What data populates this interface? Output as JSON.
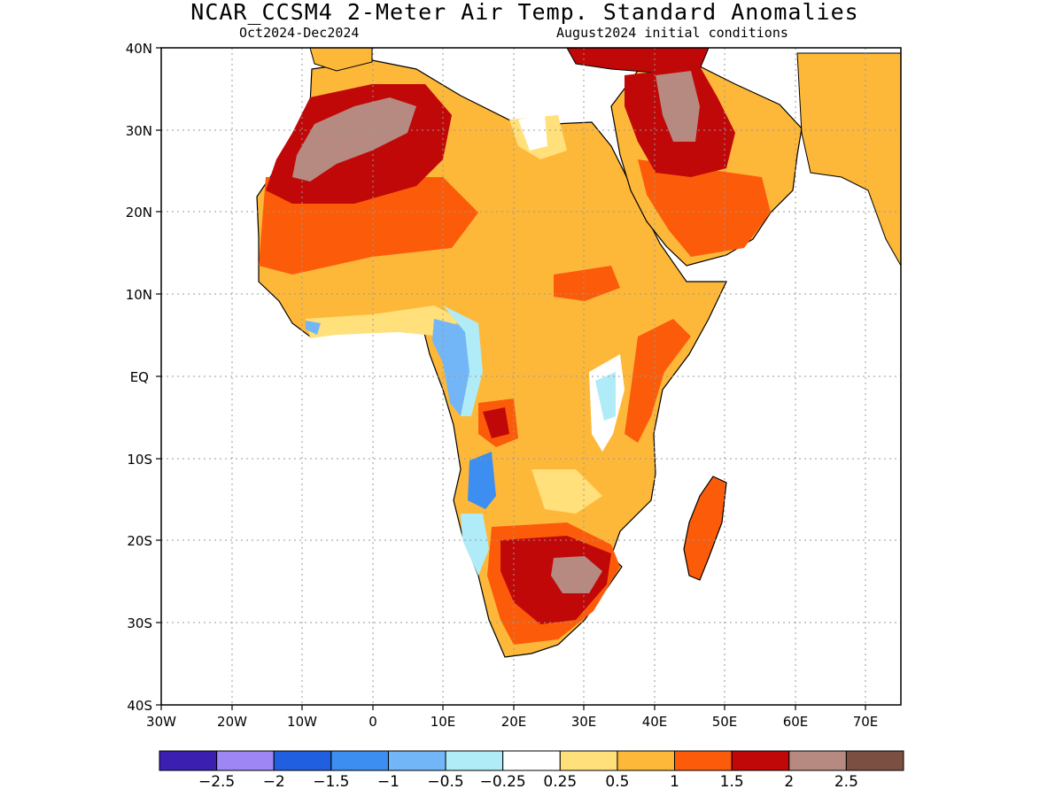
{
  "title": "NCAR_CCSM4 2-Meter Air Temp. Standard Anomalies",
  "subtitle_left": "Oct2024-Dec2024",
  "subtitle_right": "August2024 initial conditions",
  "map": {
    "lon_range": [
      -30,
      75
    ],
    "lat_range": [
      -40,
      40
    ],
    "x_ticks": [
      "30W",
      "20W",
      "10W",
      "0",
      "10E",
      "20E",
      "30E",
      "40E",
      "50E",
      "60E",
      "70E"
    ],
    "y_ticks": [
      "40N",
      "30N",
      "20N",
      "10N",
      "EQ",
      "10S",
      "20S",
      "30S",
      "40S"
    ],
    "grid": "dotted"
  },
  "colorbar": {
    "colors": [
      "#3a1fb0",
      "#9e87f5",
      "#1f5fe0",
      "#3c8ef0",
      "#73b6f7",
      "#b0ecf7",
      "#ffffff",
      "#ffe07a",
      "#fdb83a",
      "#fc5c0a",
      "#c00808",
      "#b68a80",
      "#7b4f42"
    ],
    "labels": [
      "-2.5",
      "-2",
      "-1.5",
      "-1",
      "-0.5",
      "-0.25",
      "0.25",
      "0.5",
      "1",
      "1.5",
      "2",
      "2.5"
    ]
  }
}
